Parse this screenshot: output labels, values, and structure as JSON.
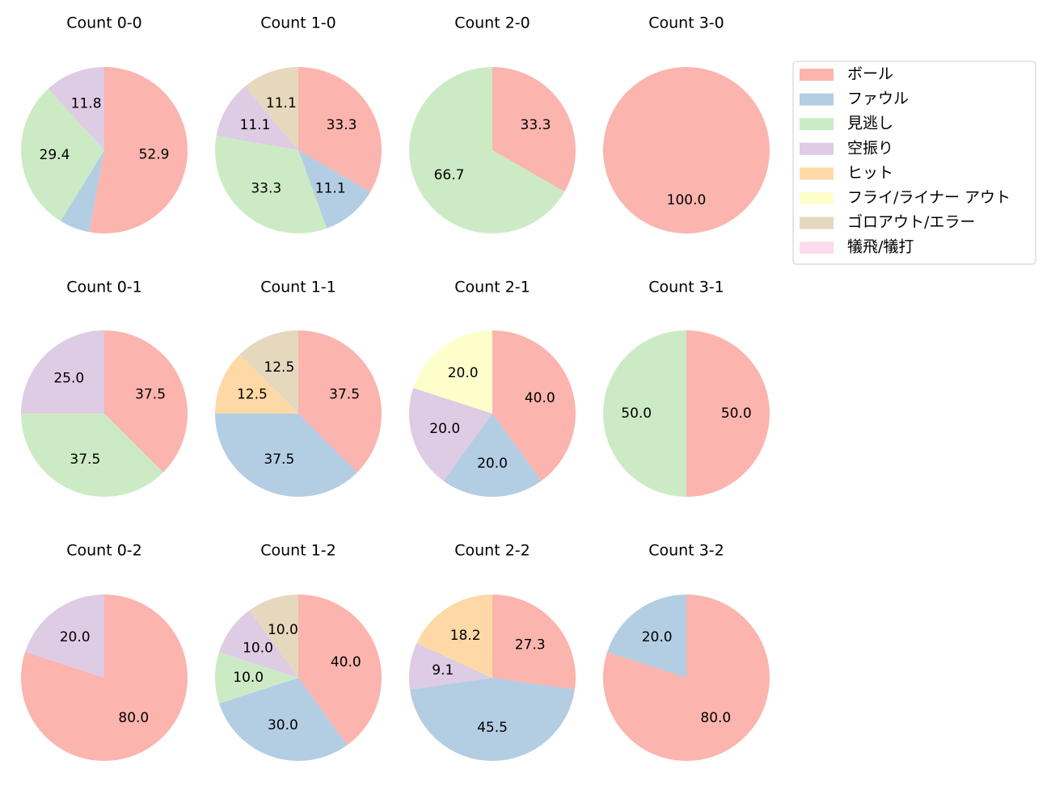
{
  "legend": {
    "labels": [
      "ボール",
      "ファウル",
      "見逃し",
      "空振り",
      "ヒット",
      "フライ/ライナー アウト",
      "ゴロアウト/エラー",
      "犠飛/犠打"
    ],
    "colors": [
      "#fbb4ae",
      "#b3cde3",
      "#ccebc5",
      "#decbe4",
      "#fed9a6",
      "#ffffcc",
      "#e5d8bd",
      "#fddaec"
    ]
  },
  "chart_data": [
    {
      "type": "pie",
      "title": "Count 0-0",
      "values": [
        52.9,
        5.9,
        29.4,
        11.8,
        0,
        0,
        0,
        0
      ],
      "value_labels": [
        "52.9",
        null,
        "29.4",
        "11.8",
        null,
        null,
        null,
        null
      ]
    },
    {
      "type": "pie",
      "title": "Count 1-0",
      "values": [
        33.3,
        11.1,
        33.3,
        11.1,
        0,
        0,
        11.1,
        0
      ],
      "value_labels": [
        "33.3",
        "11.1",
        "33.3",
        "11.1",
        null,
        null,
        "11.1",
        null
      ]
    },
    {
      "type": "pie",
      "title": "Count 2-0",
      "values": [
        33.3,
        0,
        66.7,
        0,
        0,
        0,
        0,
        0
      ],
      "value_labels": [
        "33.3",
        null,
        "66.7",
        null,
        null,
        null,
        null,
        null
      ]
    },
    {
      "type": "pie",
      "title": "Count 3-0",
      "values": [
        100,
        0,
        0,
        0,
        0,
        0,
        0,
        0
      ],
      "value_labels": [
        "100.0",
        null,
        null,
        null,
        null,
        null,
        null,
        null
      ]
    },
    {
      "type": "pie",
      "title": "Count 0-1",
      "values": [
        37.5,
        0,
        37.5,
        25,
        0,
        0,
        0,
        0
      ],
      "value_labels": [
        "37.5",
        null,
        "37.5",
        "25.0",
        null,
        null,
        null,
        null
      ]
    },
    {
      "type": "pie",
      "title": "Count 1-1",
      "values": [
        37.5,
        37.5,
        0,
        0,
        12.5,
        0,
        12.5,
        0
      ],
      "value_labels": [
        "37.5",
        "37.5",
        null,
        null,
        "12.5",
        null,
        "12.5",
        null
      ]
    },
    {
      "type": "pie",
      "title": "Count 2-1",
      "values": [
        40,
        20,
        0,
        20,
        0,
        20,
        0,
        0
      ],
      "value_labels": [
        "40.0",
        "20.0",
        null,
        "20.0",
        null,
        "20.0",
        null,
        null
      ]
    },
    {
      "type": "pie",
      "title": "Count 3-1",
      "values": [
        50,
        0,
        50,
        0,
        0,
        0,
        0,
        0
      ],
      "value_labels": [
        "50.0",
        null,
        "50.0",
        null,
        null,
        null,
        null,
        null
      ]
    },
    {
      "type": "pie",
      "title": "Count 0-2",
      "values": [
        80,
        0,
        0,
        20,
        0,
        0,
        0,
        0
      ],
      "value_labels": [
        "80.0",
        null,
        null,
        "20.0",
        null,
        null,
        null,
        null
      ]
    },
    {
      "type": "pie",
      "title": "Count 1-2",
      "values": [
        40,
        30,
        10,
        10,
        0,
        0,
        10,
        0
      ],
      "value_labels": [
        "40.0",
        "30.0",
        "10.0",
        "10.0",
        null,
        null,
        "10.0",
        null
      ]
    },
    {
      "type": "pie",
      "title": "Count 2-2",
      "values": [
        27.3,
        45.5,
        0,
        9.1,
        18.2,
        0,
        0,
        0
      ],
      "value_labels": [
        "27.3",
        "45.5",
        null,
        "9.1",
        "18.2",
        null,
        null,
        null
      ]
    },
    {
      "type": "pie",
      "title": "Count 3-2",
      "values": [
        80,
        20,
        0,
        0,
        0,
        0,
        0,
        0
      ],
      "value_labels": [
        "80.0",
        "20.0",
        null,
        null,
        null,
        null,
        null,
        null
      ]
    }
  ]
}
